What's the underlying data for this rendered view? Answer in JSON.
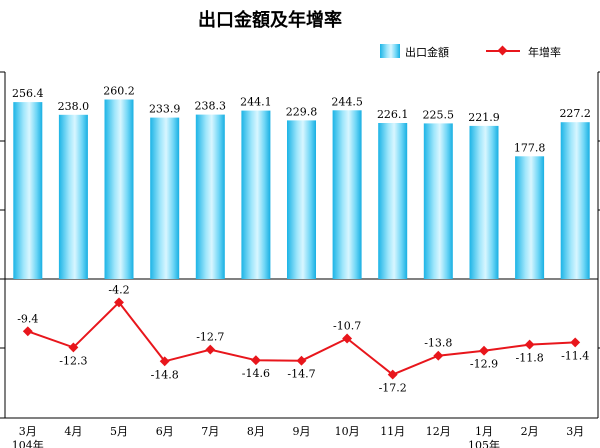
{
  "chart_data": {
    "type": "bar",
    "title": "出口金額及年增率",
    "categories": [
      "3月",
      "4月",
      "5月",
      "6月",
      "7月",
      "8月",
      "9月",
      "10月",
      "11月",
      "12月",
      "1月",
      "2月",
      "3月"
    ],
    "year_labels": [
      {
        "index": 0,
        "label": "104年"
      },
      {
        "index": 10,
        "label": "105年"
      }
    ],
    "series": [
      {
        "name": "出口金額",
        "type": "bar",
        "color": "#33c6f0",
        "values": [
          256.4,
          238.0,
          260.2,
          233.9,
          238.3,
          244.1,
          229.8,
          244.5,
          226.1,
          225.5,
          221.9,
          177.8,
          227.2
        ],
        "labels": [
          "256.4",
          "238.0",
          "260.2",
          "233.9",
          "238.3",
          "244.1",
          "229.8",
          "244.5",
          "226.1",
          "225.5",
          "221.9",
          "177.8",
          "227.2"
        ],
        "ylim": [
          0,
          300
        ]
      },
      {
        "name": "年增率",
        "type": "line",
        "color": "#e8161c",
        "values": [
          -9.4,
          -12.3,
          -4.2,
          -14.8,
          -12.7,
          -14.6,
          -14.7,
          -10.7,
          -17.2,
          -13.8,
          -12.9,
          -11.8,
          -11.4
        ],
        "labels": [
          "-9.4",
          "-12.3",
          "-4.2",
          "-14.8",
          "-12.7",
          "-14.6",
          "-14.7",
          "-10.7",
          "-17.2",
          "-13.8",
          "-12.9",
          "-11.8",
          "-11.4"
        ],
        "ylim": [
          -25,
          0
        ]
      }
    ],
    "legend_position": "top-right",
    "grid": false
  }
}
